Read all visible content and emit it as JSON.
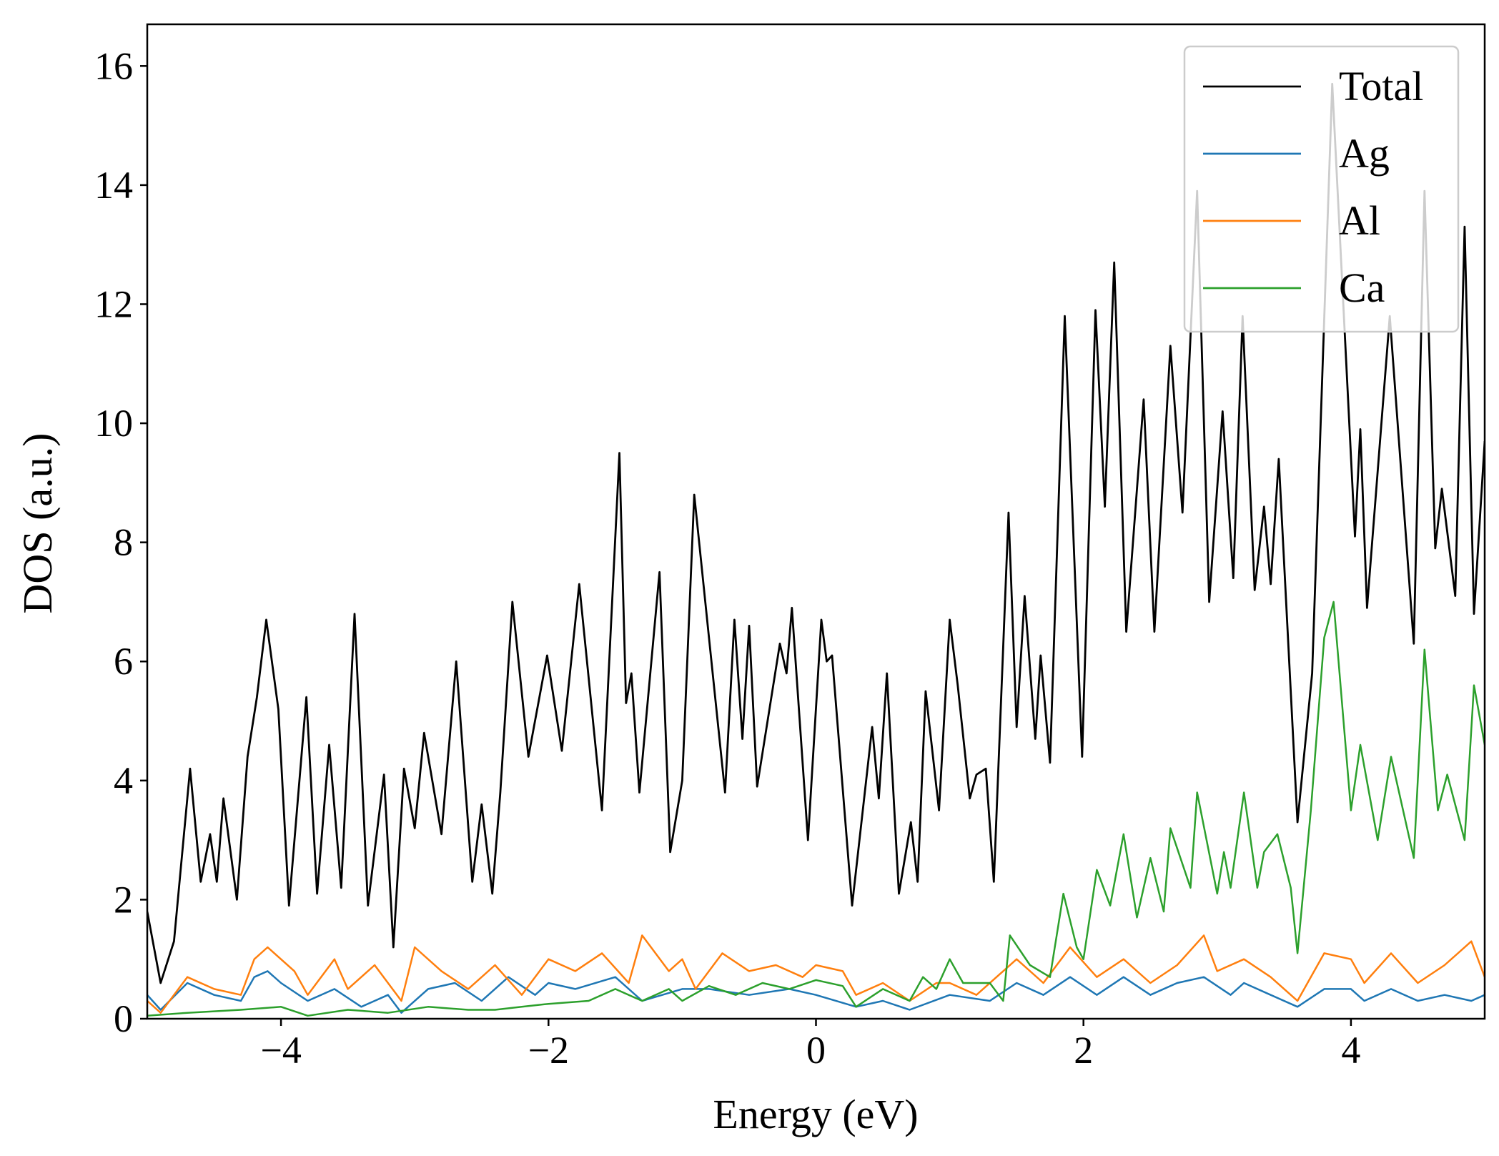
{
  "chart_data": {
    "type": "line",
    "xlabel": "Energy (eV)",
    "ylabel": "DOS (a.u.)",
    "xlim": [
      -5,
      5
    ],
    "ylim": [
      0,
      16.7
    ],
    "xticks": [
      {
        "value": -4,
        "label": "−4"
      },
      {
        "value": -2,
        "label": "−2"
      },
      0,
      2,
      4
    ],
    "yticks": [
      0,
      2,
      4,
      6,
      8,
      10,
      12,
      14,
      16
    ],
    "legend": "upper right",
    "grid": false,
    "series": [
      {
        "name": "Total",
        "color": "#000000",
        "x": [
          -5.0,
          -4.9,
          -4.8,
          -4.68,
          -4.6,
          -4.53,
          -4.48,
          -4.43,
          -4.33,
          -4.25,
          -4.18,
          -4.11,
          -4.02,
          -3.94,
          -3.81,
          -3.73,
          -3.64,
          -3.55,
          -3.45,
          -3.35,
          -3.23,
          -3.16,
          -3.08,
          -3.0,
          -2.93,
          -2.8,
          -2.69,
          -2.57,
          -2.5,
          -2.42,
          -2.36,
          -2.27,
          -2.15,
          -2.01,
          -1.9,
          -1.77,
          -1.6,
          -1.47,
          -1.42,
          -1.38,
          -1.32,
          -1.17,
          -1.09,
          -1.0,
          -0.91,
          -0.8,
          -0.68,
          -0.61,
          -0.55,
          -0.5,
          -0.44,
          -0.27,
          -0.22,
          -0.18,
          -0.06,
          0.04,
          0.08,
          0.12,
          0.27,
          0.42,
          0.47,
          0.53,
          0.62,
          0.71,
          0.76,
          0.82,
          0.92,
          1.0,
          1.06,
          1.15,
          1.2,
          1.27,
          1.33,
          1.44,
          1.5,
          1.56,
          1.64,
          1.68,
          1.75,
          1.86,
          1.99,
          2.09,
          2.16,
          2.23,
          2.32,
          2.45,
          2.53,
          2.65,
          2.74,
          2.85,
          2.94,
          3.04,
          3.12,
          3.19,
          3.28,
          3.35,
          3.4,
          3.46,
          3.6,
          3.71,
          3.86,
          4.03,
          4.07,
          4.12,
          4.29,
          4.47,
          4.55,
          4.63,
          4.68,
          4.78,
          4.85,
          4.92,
          5.0
        ],
        "values": [
          1.8,
          0.6,
          1.3,
          4.2,
          2.3,
          3.1,
          2.3,
          3.7,
          2.0,
          4.4,
          5.4,
          6.7,
          5.2,
          1.9,
          5.4,
          2.1,
          4.6,
          2.2,
          6.8,
          1.9,
          4.1,
          1.2,
          4.2,
          3.2,
          4.8,
          3.1,
          6.0,
          2.3,
          3.6,
          2.1,
          3.8,
          7.0,
          4.4,
          6.1,
          4.5,
          7.3,
          3.5,
          9.5,
          5.3,
          5.8,
          3.8,
          7.5,
          2.8,
          4.0,
          8.8,
          6.4,
          3.8,
          6.7,
          4.7,
          6.6,
          3.9,
          6.3,
          5.8,
          6.9,
          3.0,
          6.7,
          6.0,
          6.1,
          1.9,
          4.9,
          3.7,
          5.8,
          2.1,
          3.3,
          2.3,
          5.5,
          3.5,
          6.7,
          5.6,
          3.7,
          4.1,
          4.2,
          2.3,
          8.5,
          4.9,
          7.1,
          4.7,
          6.1,
          4.3,
          11.8,
          4.4,
          11.9,
          8.6,
          12.7,
          6.5,
          10.4,
          6.5,
          11.3,
          8.5,
          13.9,
          7.0,
          10.2,
          7.4,
          11.8,
          7.2,
          8.6,
          7.3,
          9.4,
          3.3,
          5.8,
          15.7,
          8.1,
          9.9,
          6.9,
          11.8,
          6.3,
          13.9,
          7.9,
          8.9,
          7.1,
          13.3,
          6.8,
          9.7
        ]
      },
      {
        "name": "Ag",
        "color": "#1f77b4",
        "x": [
          -5.0,
          -4.9,
          -4.7,
          -4.5,
          -4.3,
          -4.2,
          -4.1,
          -4.0,
          -3.8,
          -3.6,
          -3.4,
          -3.2,
          -3.1,
          -2.9,
          -2.7,
          -2.5,
          -2.3,
          -2.1,
          -2.0,
          -1.8,
          -1.5,
          -1.3,
          -1.0,
          -0.8,
          -0.5,
          -0.2,
          0.0,
          0.3,
          0.5,
          0.7,
          1.0,
          1.3,
          1.5,
          1.7,
          1.9,
          2.1,
          2.3,
          2.5,
          2.7,
          2.9,
          3.1,
          3.2,
          3.4,
          3.6,
          3.8,
          4.0,
          4.1,
          4.3,
          4.5,
          4.7,
          4.9,
          5.0
        ],
        "values": [
          0.4,
          0.15,
          0.6,
          0.4,
          0.3,
          0.7,
          0.8,
          0.6,
          0.3,
          0.5,
          0.2,
          0.4,
          0.1,
          0.5,
          0.6,
          0.3,
          0.7,
          0.4,
          0.6,
          0.5,
          0.7,
          0.3,
          0.5,
          0.5,
          0.4,
          0.5,
          0.4,
          0.2,
          0.3,
          0.15,
          0.4,
          0.3,
          0.6,
          0.4,
          0.7,
          0.4,
          0.7,
          0.4,
          0.6,
          0.7,
          0.4,
          0.6,
          0.4,
          0.2,
          0.5,
          0.5,
          0.3,
          0.5,
          0.3,
          0.4,
          0.3,
          0.4
        ]
      },
      {
        "name": "Al",
        "color": "#ff7f0e",
        "x": [
          -5.0,
          -4.9,
          -4.7,
          -4.5,
          -4.3,
          -4.2,
          -4.1,
          -3.9,
          -3.8,
          -3.6,
          -3.5,
          -3.3,
          -3.1,
          -3.0,
          -2.8,
          -2.6,
          -2.4,
          -2.2,
          -2.0,
          -1.8,
          -1.6,
          -1.4,
          -1.3,
          -1.1,
          -1.0,
          -0.9,
          -0.7,
          -0.5,
          -0.3,
          -0.1,
          0.0,
          0.2,
          0.3,
          0.5,
          0.7,
          0.9,
          1.0,
          1.2,
          1.4,
          1.5,
          1.7,
          1.9,
          2.1,
          2.3,
          2.5,
          2.7,
          2.9,
          3.0,
          3.2,
          3.4,
          3.6,
          3.8,
          4.0,
          4.1,
          4.3,
          4.5,
          4.7,
          4.9,
          5.0
        ],
        "values": [
          0.3,
          0.1,
          0.7,
          0.5,
          0.4,
          1.0,
          1.2,
          0.8,
          0.4,
          1.0,
          0.5,
          0.9,
          0.3,
          1.2,
          0.8,
          0.5,
          0.9,
          0.4,
          1.0,
          0.8,
          1.1,
          0.6,
          1.4,
          0.8,
          1.0,
          0.5,
          1.1,
          0.8,
          0.9,
          0.7,
          0.9,
          0.8,
          0.4,
          0.6,
          0.3,
          0.6,
          0.6,
          0.4,
          0.8,
          1.0,
          0.6,
          1.2,
          0.7,
          1.0,
          0.6,
          0.9,
          1.4,
          0.8,
          1.0,
          0.7,
          0.3,
          1.1,
          1.0,
          0.6,
          1.1,
          0.6,
          0.9,
          1.3,
          0.7
        ]
      },
      {
        "name": "Ca",
        "color": "#2ca02c",
        "x": [
          -5.0,
          -4.7,
          -4.3,
          -4.0,
          -3.8,
          -3.5,
          -3.2,
          -2.9,
          -2.6,
          -2.4,
          -2.2,
          -2.0,
          -1.7,
          -1.5,
          -1.3,
          -1.1,
          -1.0,
          -0.8,
          -0.6,
          -0.4,
          -0.2,
          0.0,
          0.2,
          0.3,
          0.5,
          0.7,
          0.8,
          0.9,
          1.0,
          1.1,
          1.3,
          1.4,
          1.45,
          1.6,
          1.75,
          1.85,
          1.95,
          2.0,
          2.1,
          2.2,
          2.3,
          2.4,
          2.5,
          2.6,
          2.65,
          2.8,
          2.85,
          3.0,
          3.05,
          3.1,
          3.2,
          3.3,
          3.35,
          3.45,
          3.55,
          3.6,
          3.7,
          3.8,
          3.87,
          4.0,
          4.07,
          4.2,
          4.3,
          4.4,
          4.47,
          4.55,
          4.65,
          4.72,
          4.85,
          4.92,
          5.0
        ],
        "values": [
          0.05,
          0.1,
          0.15,
          0.2,
          0.05,
          0.15,
          0.1,
          0.2,
          0.15,
          0.15,
          0.2,
          0.25,
          0.3,
          0.5,
          0.3,
          0.5,
          0.3,
          0.55,
          0.4,
          0.6,
          0.5,
          0.65,
          0.55,
          0.2,
          0.5,
          0.3,
          0.7,
          0.5,
          1.0,
          0.6,
          0.6,
          0.3,
          1.4,
          0.9,
          0.7,
          2.1,
          1.2,
          1.0,
          2.5,
          1.9,
          3.1,
          1.7,
          2.7,
          1.8,
          3.2,
          2.2,
          3.8,
          2.1,
          2.8,
          2.2,
          3.8,
          2.2,
          2.8,
          3.1,
          2.2,
          1.1,
          3.5,
          6.4,
          7.0,
          3.5,
          4.6,
          3.0,
          4.4,
          3.4,
          2.7,
          6.2,
          3.5,
          4.1,
          3.0,
          5.6,
          4.6
        ]
      }
    ]
  }
}
